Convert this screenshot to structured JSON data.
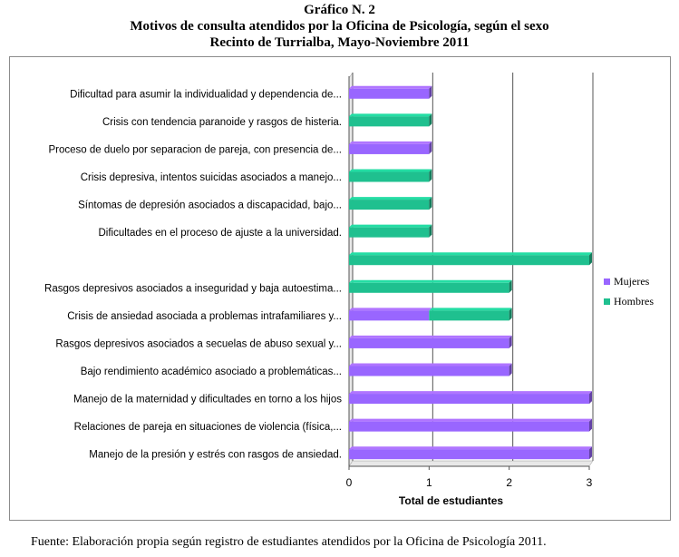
{
  "title_lines": [
    "Gráfico N. 2",
    "Motivos de consulta atendidos por la Oficina de Psicología, según el sexo",
    "Recinto de Turrialba, Mayo-Noviembre 2011"
  ],
  "source": "Fuente: Elaboración propia según registro de estudiantes atendidos por  la Oficina de Psicología 2011.",
  "colors": {
    "mujeres": "#9966ff",
    "hombres": "#1fc08f",
    "grid": "#000000"
  },
  "chart_data": {
    "type": "bar",
    "orientation": "horizontal",
    "stacked": true,
    "categories": [
      "Dificultad para asumir la individualidad y dependencia de...",
      "Crisis con tendencia paranoide y rasgos de histeria.",
      "Proceso de duelo por separacion de  pareja, con presencia de...",
      "Crisis depresiva, intentos suicidas asociados a manejo...",
      "Síntomas de depresión asociados a discapacidad, bajo...",
      "Dificultades en el proceso de ajuste a la universidad.",
      "",
      "Rasgos depresivos asociados a inseguridad y baja autoestima...",
      "Crisis de ansiedad asociada a problemas intrafamiliares y...",
      "Rasgos depresivos asociados a secuelas de abuso sexual y...",
      "Bajo rendimiento académico asociado a problemáticas...",
      "Manejo de la maternidad y dificultades en torno a los hijos",
      "Relaciones de pareja en situaciones de violencia (física,...",
      "Manejo de la  presión y estrés con rasgos de ansiedad."
    ],
    "series": [
      {
        "name": "Mujeres",
        "values": [
          1,
          0,
          1,
          0,
          0,
          0,
          0,
          0,
          1,
          2,
          2,
          3,
          3,
          3
        ]
      },
      {
        "name": "Hombres",
        "values": [
          0,
          1,
          0,
          1,
          1,
          1,
          3,
          2,
          1,
          0,
          0,
          0,
          0,
          0
        ]
      }
    ],
    "xlabel": "Total de estudiantes",
    "xticks": [
      "0",
      "1",
      "2",
      "3"
    ],
    "xlim": [
      0,
      3
    ],
    "grid": true,
    "legend": "right"
  }
}
